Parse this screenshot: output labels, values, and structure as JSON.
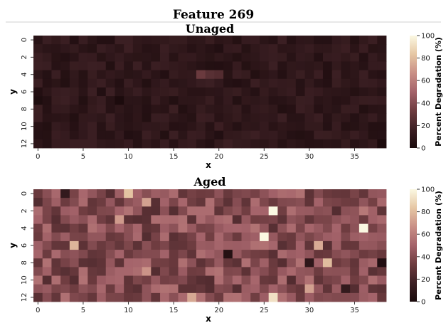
{
  "figure": {
    "title": "Feature 269"
  },
  "chart_data": [
    {
      "type": "heatmap",
      "title": "Unaged",
      "xlabel": "x",
      "ylabel": "y",
      "x_ticks": [
        0,
        5,
        10,
        15,
        20,
        25,
        30,
        35
      ],
      "y_ticks": [
        0,
        2,
        4,
        6,
        8,
        10,
        12
      ],
      "ncols": 39,
      "nrows": 13,
      "vmin": 0,
      "vmax": 100,
      "base_value": 10,
      "variation": 6,
      "seed": 7,
      "overrides": [
        [
          4,
          18,
          32
        ],
        [
          4,
          19,
          26
        ],
        [
          4,
          20,
          24
        ],
        [
          7,
          0,
          2
        ],
        [
          7,
          9,
          1
        ],
        [
          12,
          38,
          1
        ],
        [
          11,
          20,
          4
        ],
        [
          11,
          10,
          4
        ],
        [
          11,
          37,
          5
        ]
      ]
    },
    {
      "type": "heatmap",
      "title": "Aged",
      "xlabel": "x",
      "ylabel": "y",
      "x_ticks": [
        0,
        5,
        10,
        15,
        20,
        25,
        30,
        35
      ],
      "y_ticks": [
        0,
        2,
        4,
        6,
        8,
        10,
        12
      ],
      "ncols": 39,
      "nrows": 13,
      "vmin": 0,
      "vmax": 100,
      "base_value": 40,
      "variation": 16,
      "seed": 3,
      "overrides": [
        [
          0,
          10,
          82
        ],
        [
          1,
          12,
          72
        ],
        [
          3,
          9,
          70
        ],
        [
          2,
          26,
          100
        ],
        [
          5,
          25,
          100
        ],
        [
          4,
          36,
          100
        ],
        [
          6,
          4,
          78
        ],
        [
          6,
          31,
          75
        ],
        [
          8,
          32,
          80
        ],
        [
          11,
          30,
          72
        ],
        [
          12,
          17,
          74
        ],
        [
          12,
          26,
          92
        ],
        [
          9,
          12,
          68
        ],
        [
          7,
          21,
          5
        ],
        [
          8,
          38,
          4
        ],
        [
          8,
          30,
          10
        ],
        [
          11,
          34,
          12
        ],
        [
          2,
          36,
          58
        ],
        [
          0,
          3,
          12
        ]
      ]
    }
  ],
  "colorbar": {
    "label": "Percent Degradation (%)",
    "ticks": [
      0,
      20,
      40,
      60,
      80,
      100
    ]
  },
  "colors": {
    "stops": [
      "#1a0a0c",
      "#3d2024",
      "#6e3c40",
      "#a4636a",
      "#c98f86",
      "#e6c7a4",
      "#fbf8e2"
    ]
  }
}
